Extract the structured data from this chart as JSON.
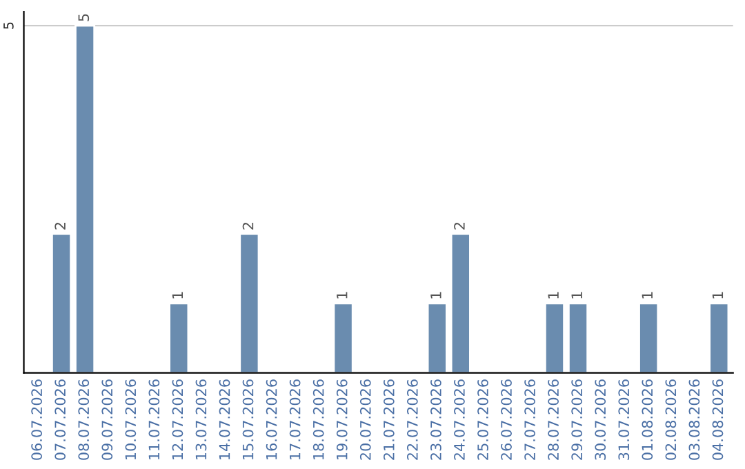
{
  "chart_data": {
    "type": "bar",
    "categories": [
      "06.07.2026",
      "07.07.2026",
      "08.07.2026",
      "09.07.2026",
      "10.07.2026",
      "11.07.2026",
      "12.07.2026",
      "13.07.2026",
      "14.07.2026",
      "15.07.2026",
      "16.07.2026",
      "17.07.2026",
      "18.07.2026",
      "19.07.2026",
      "20.07.2026",
      "21.07.2026",
      "22.07.2026",
      "23.07.2026",
      "24.07.2026",
      "25.07.2026",
      "26.07.2026",
      "27.07.2026",
      "28.07.2026",
      "29.07.2026",
      "30.07.2026",
      "31.07.2026",
      "01.08.2026",
      "02.08.2026",
      "03.08.2026",
      "04.08.2026"
    ],
    "values": [
      0,
      2,
      5,
      0,
      0,
      0,
      1,
      0,
      0,
      2,
      0,
      0,
      0,
      1,
      0,
      0,
      0,
      1,
      2,
      0,
      0,
      0,
      1,
      1,
      0,
      0,
      1,
      0,
      0,
      1
    ],
    "value_labels": [
      null,
      "2",
      "5",
      null,
      null,
      null,
      "1",
      null,
      null,
      "2",
      null,
      null,
      null,
      "1",
      null,
      null,
      null,
      "1",
      "2",
      null,
      null,
      null,
      "1",
      "1",
      null,
      null,
      "1",
      null,
      null,
      "1"
    ],
    "color": "#6a8caf",
    "ylim": [
      0,
      5.2
    ],
    "yticks": [
      5
    ],
    "grid": "y",
    "legend": false
  }
}
